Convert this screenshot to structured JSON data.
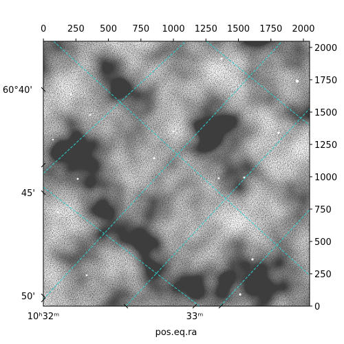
{
  "chart_data": {
    "type": "image",
    "xlim": [
      -0.5,
      2047.5
    ],
    "ylim": [
      -0.5,
      2047.5
    ],
    "xticks": [
      0,
      250,
      500,
      750,
      1000,
      1250,
      1500,
      1750,
      2000
    ],
    "yticks": [
      0,
      250,
      500,
      750,
      1000,
      1250,
      1500,
      1750,
      2000
    ],
    "wcs_y_tick_labels": [
      "60°40'",
      "45'",
      "50'"
    ],
    "wcs_x_tick_labels": [
      "10ʰ32ᵐ",
      "33ᵐ"
    ],
    "xlabel": "pos.eq.ra",
    "grid": true
  }
}
